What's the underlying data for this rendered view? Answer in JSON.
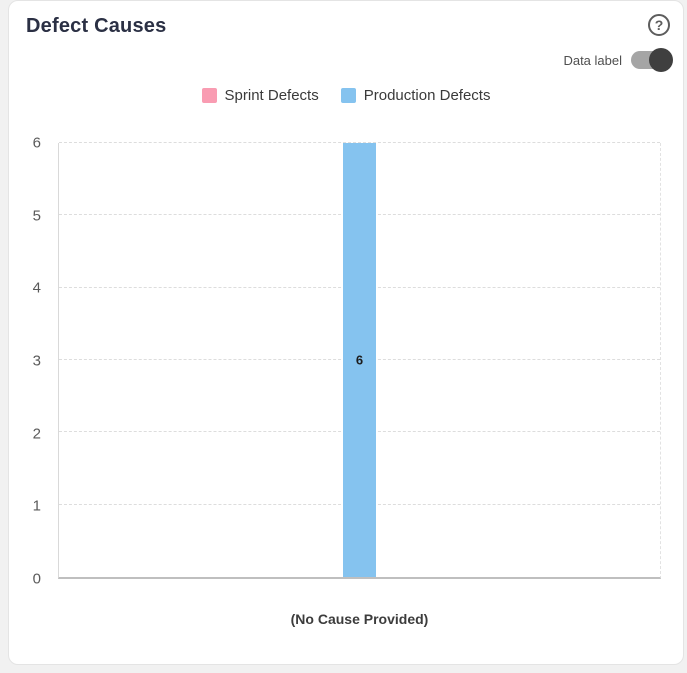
{
  "card": {
    "title": "Defect Causes"
  },
  "header": {
    "help_glyph": "?",
    "data_label_toggle": {
      "label": "Data label",
      "state": "on"
    }
  },
  "legend": {
    "items": [
      {
        "label": "Sprint Defects",
        "color": "#f99cb2"
      },
      {
        "label": "Production Defects",
        "color": "#85c3ef"
      }
    ]
  },
  "chart_data": {
    "type": "bar",
    "title": "Defect Causes",
    "categories": [
      "(No Cause Provided)"
    ],
    "series": [
      {
        "name": "Sprint Defects",
        "color": "#f99cb2",
        "values": [
          0
        ]
      },
      {
        "name": "Production Defects",
        "color": "#85c3ef",
        "values": [
          6
        ]
      }
    ],
    "xlabel": "",
    "ylabel": "",
    "ylim": [
      0,
      6
    ],
    "yticks": [
      0,
      1,
      2,
      3,
      4,
      5,
      6
    ],
    "grid": "horizontal-dashed",
    "legend_position": "top-center",
    "data_labels_shown": true
  },
  "colors": {
    "title_text": "#2b3044",
    "axis_text": "#5a5a5a",
    "gridline": "#dddddd",
    "bottom_axis": "#bfbfbf",
    "toggle_track": "#a5a5a5",
    "toggle_knob": "#3f3f3f",
    "card_background": "#ffffff",
    "page_background": "#f1f1f1"
  }
}
